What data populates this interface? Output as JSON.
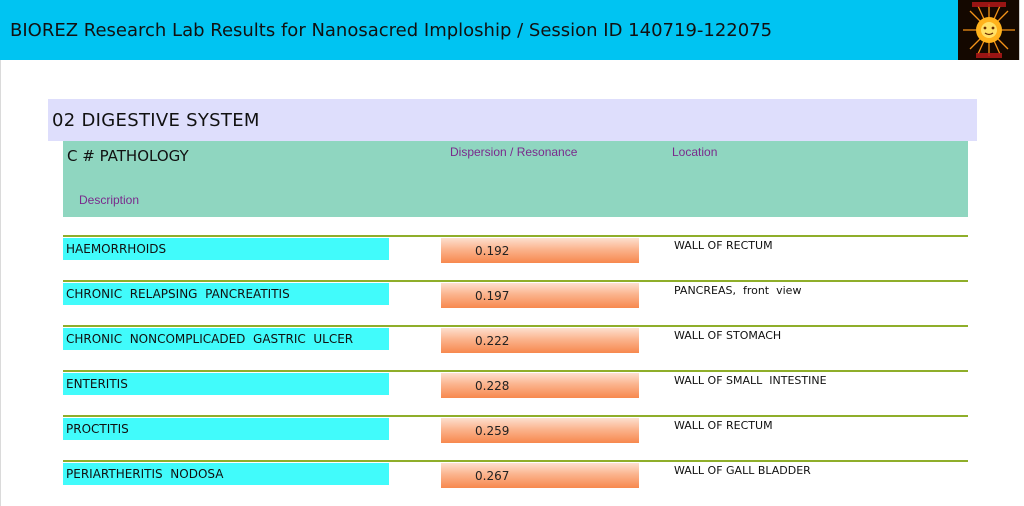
{
  "header": {
    "title": "BIOREZ Research Lab Results for Nanosacred Imploship / Session ID 140719-122075",
    "logo_icon": "sun-emblem-icon"
  },
  "section": {
    "title": "02 DIGESTIVE SYSTEM"
  },
  "columns": {
    "pathology": "C # PATHOLOGY",
    "dispersion": "Dispersion / Resonance",
    "location": "Location",
    "description": "Description"
  },
  "rows": [
    {
      "name": "HAEMORRHOIDS",
      "value": "0.192",
      "location": "WALL OF RECTUM"
    },
    {
      "name": "CHRONIC  RELAPSING  PANCREATITIS",
      "value": "0.197",
      "location": "PANCREAS,  front  view"
    },
    {
      "name": "CHRONIC  NONCOMPLICADED  GASTRIC  ULCER",
      "value": "0.222",
      "location": "WALL OF STOMACH"
    },
    {
      "name": "ENTERITIS",
      "value": "0.228",
      "location": "WALL OF SMALL  INTESTINE"
    },
    {
      "name": "PROCTITIS",
      "value": "0.259",
      "location": "WALL OF RECTUM"
    },
    {
      "name": "PERIARTHERITIS  NODOSA",
      "value": "0.267",
      "location": "WALL OF GALL BLADDER"
    }
  ],
  "colors": {
    "title_bar": "#00c4f2",
    "section_band": "#dedefc",
    "header_band": "#8fd6c0",
    "name_cell": "#41fbfb",
    "value_gradient_start": "#fde0cf",
    "value_gradient_end": "#f7884e",
    "rule": "#8fae2a",
    "column_label": "#7a2a8c"
  }
}
